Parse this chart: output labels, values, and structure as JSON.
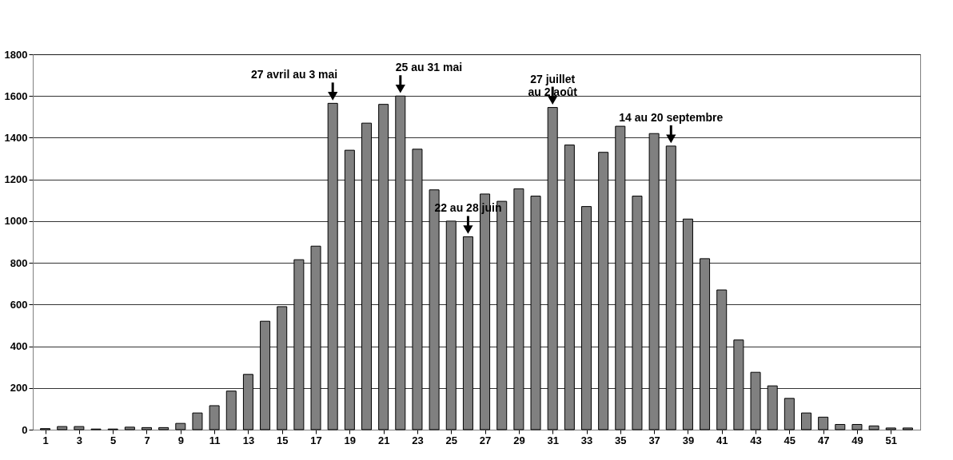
{
  "chart_data": {
    "type": "bar",
    "x": [
      1,
      2,
      3,
      4,
      5,
      6,
      7,
      8,
      9,
      10,
      11,
      12,
      13,
      14,
      15,
      16,
      17,
      18,
      19,
      20,
      21,
      22,
      23,
      24,
      25,
      26,
      27,
      28,
      29,
      30,
      31,
      32,
      33,
      34,
      35,
      36,
      37,
      38,
      39,
      40,
      41,
      42,
      43,
      44,
      45,
      46,
      47,
      48,
      49,
      50,
      51,
      52
    ],
    "values": [
      5,
      15,
      15,
      3,
      3,
      12,
      10,
      10,
      30,
      80,
      115,
      185,
      265,
      520,
      590,
      815,
      880,
      1565,
      1340,
      1470,
      1560,
      1600,
      1345,
      1150,
      1000,
      925,
      1130,
      1095,
      1155,
      1120,
      1545,
      1365,
      1070,
      1330,
      1455,
      1120,
      1420,
      1360,
      1010,
      820,
      670,
      430,
      275,
      210,
      150,
      80,
      60,
      25,
      25,
      18,
      8,
      8
    ],
    "color": "#808080",
    "xlim": [
      0.5,
      52.5
    ],
    "xticks": [
      1,
      3,
      5,
      7,
      9,
      11,
      13,
      15,
      17,
      19,
      21,
      23,
      25,
      27,
      29,
      31,
      33,
      35,
      37,
      39,
      41,
      43,
      45,
      47,
      49,
      51
    ],
    "ylim": [
      0,
      1800
    ],
    "yticks": [
      0,
      200,
      400,
      600,
      800,
      {
        "value": 1000,
        "label": "1000"
      },
      {
        "value": 1200,
        "label": "1200"
      },
      {
        "value": 1400,
        "label": "1400"
      },
      {
        "value": 1600,
        "label": "1600"
      },
      {
        "value": 1800,
        "label": "1800"
      }
    ],
    "grid": "y",
    "annotations": [
      {
        "text": "27 avril au 3 mai",
        "x": 18,
        "y": 1565
      },
      {
        "text": "25 au 31 mai",
        "x": 22,
        "y": 1600
      },
      {
        "text": "22 au 28 juin",
        "x": 26,
        "y": 925
      },
      {
        "text": "27 juillet\nau 2 août",
        "x": 31,
        "y": 1545
      },
      {
        "text": "14 au 20 septembre",
        "x": 38,
        "y": 1360
      }
    ]
  }
}
